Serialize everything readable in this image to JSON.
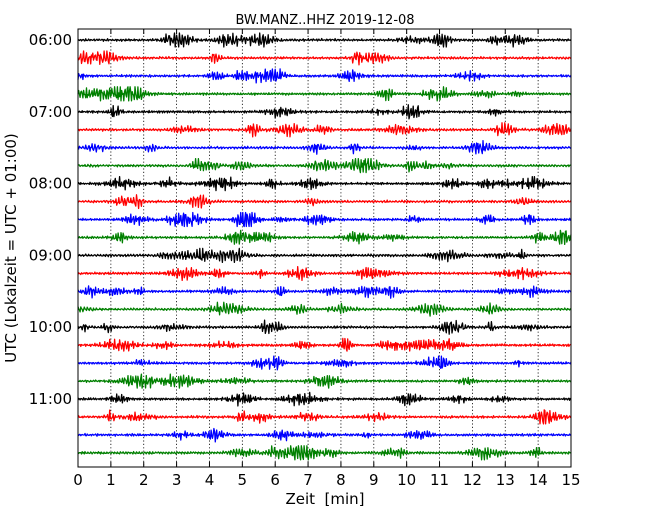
{
  "chart_data": {
    "type": "line",
    "title": "BW.MANZ..HHZ 2019-12-08",
    "xlabel": "Zeit  [min]",
    "ylabel": "UTC (Lokalzeit = UTC + 01:00)",
    "xlim": [
      0,
      15
    ],
    "x_ticks": [
      "0",
      "1",
      "2",
      "3",
      "4",
      "5",
      "6",
      "7",
      "8",
      "9",
      "10",
      "11",
      "12",
      "13",
      "14",
      "15"
    ],
    "row_labels": [
      "06:00",
      "07:00",
      "08:00",
      "09:00",
      "10:00",
      "11:00"
    ],
    "rows_per_label": 4,
    "row_count": 24,
    "grid": "vertical dotted at each minute",
    "trace_colors": [
      "#000000",
      "#ff0000",
      "#0000ff",
      "#008000"
    ],
    "trace_minutes": 15
  }
}
